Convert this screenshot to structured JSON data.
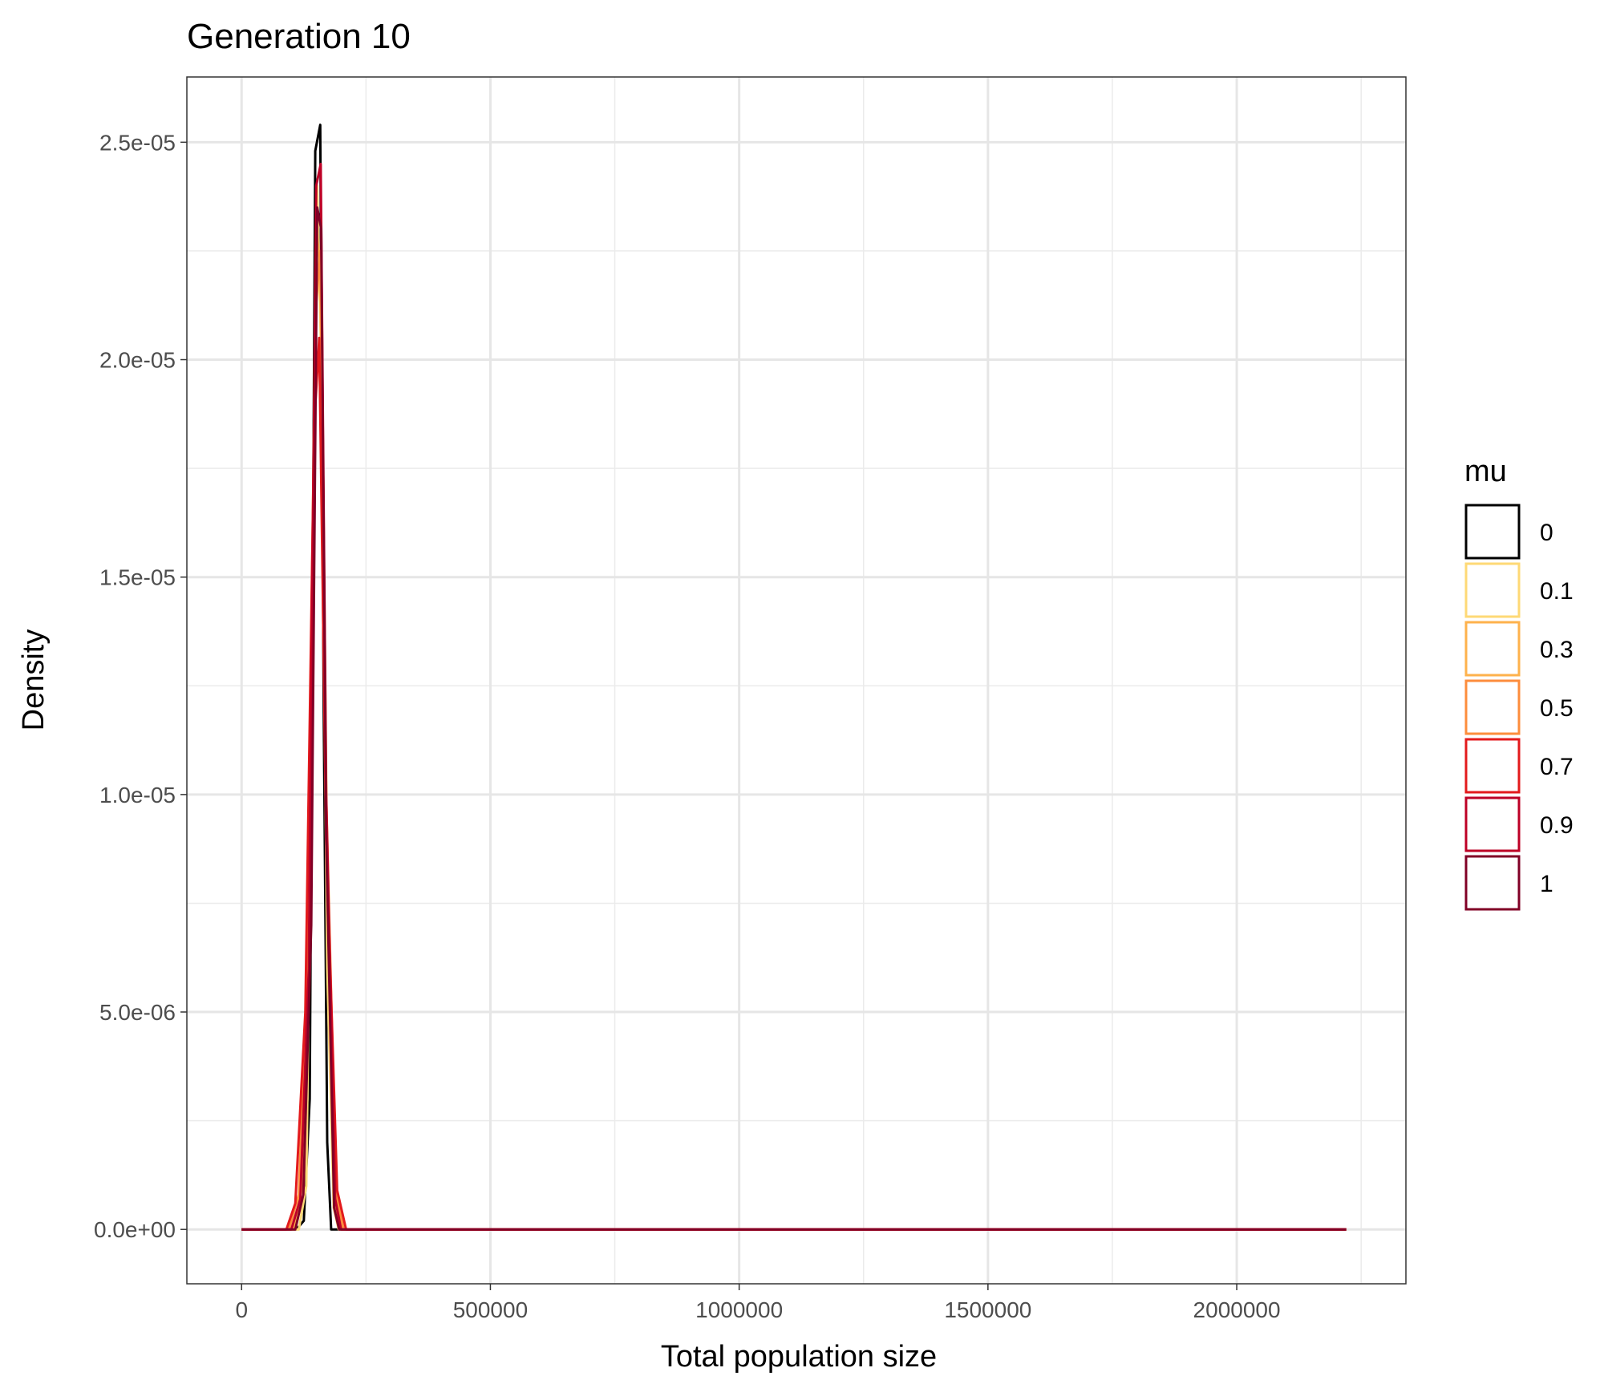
{
  "chart_data": {
    "type": "line",
    "title": "Generation 10",
    "xlabel": "Total population size",
    "ylabel": "Density",
    "xlim": [
      -110000,
      2340000
    ],
    "ylim": [
      -1.25e-06,
      2.65e-05
    ],
    "x_ticks": [
      0,
      500000,
      1000000,
      1500000,
      2000000
    ],
    "x_tick_labels": [
      "0",
      "500000",
      "1000000",
      "1500000",
      "2000000"
    ],
    "x_minor_ticks": [
      250000,
      750000,
      1250000,
      1750000,
      2250000
    ],
    "y_ticks": [
      0,
      5e-06,
      1e-05,
      1.5e-05,
      2e-05,
      2.5e-05
    ],
    "y_tick_labels": [
      "0.0e+00",
      "5.0e-06",
      "1.0e-05",
      "1.5e-05",
      "2.0e-05",
      "2.5e-05"
    ],
    "y_minor_ticks": [
      2.5e-06,
      7.5e-06,
      1.25e-05,
      1.75e-05,
      2.25e-05
    ],
    "grid": true,
    "legend": {
      "title": "mu",
      "position": "right"
    },
    "series": [
      {
        "name": "0",
        "color": "#000000",
        "points": [
          [
            0,
            0
          ],
          [
            110000,
            0
          ],
          [
            125000,
            2e-07
          ],
          [
            137000,
            3e-06
          ],
          [
            148000,
            2.48e-05
          ],
          [
            158000,
            2.54e-05
          ],
          [
            165000,
            1.2e-05
          ],
          [
            172000,
            2e-06
          ],
          [
            180000,
            0
          ],
          [
            2220000,
            0
          ]
        ]
      },
      {
        "name": "0.1",
        "color": "#FED976",
        "points": [
          [
            0,
            0
          ],
          [
            115000,
            0
          ],
          [
            130000,
            1e-06
          ],
          [
            142000,
            1.2e-05
          ],
          [
            152000,
            2.4e-05
          ],
          [
            160000,
            2e-05
          ],
          [
            172000,
            6e-06
          ],
          [
            185000,
            5e-07
          ],
          [
            195000,
            0
          ],
          [
            2220000,
            0
          ]
        ]
      },
      {
        "name": "0.3",
        "color": "#FEB24C",
        "points": [
          [
            0,
            0
          ],
          [
            105000,
            0
          ],
          [
            122000,
            1e-06
          ],
          [
            138000,
            9e-06
          ],
          [
            150000,
            2.3e-05
          ],
          [
            160000,
            2.2e-05
          ],
          [
            172000,
            8e-06
          ],
          [
            188000,
            6e-07
          ],
          [
            200000,
            0
          ],
          [
            2220000,
            0
          ]
        ]
      },
      {
        "name": "0.5",
        "color": "#FD8D3C",
        "points": [
          [
            0,
            0
          ],
          [
            95000,
            0
          ],
          [
            115000,
            8e-07
          ],
          [
            132000,
            6e-06
          ],
          [
            148000,
            2.1e-05
          ],
          [
            158000,
            2.25e-05
          ],
          [
            170000,
            1e-05
          ],
          [
            190000,
            8e-07
          ],
          [
            205000,
            0
          ],
          [
            2220000,
            0
          ]
        ]
      },
      {
        "name": "0.7",
        "color": "#E31A1C",
        "points": [
          [
            0,
            0
          ],
          [
            90000,
            0
          ],
          [
            108000,
            6e-07
          ],
          [
            128000,
            5e-06
          ],
          [
            146000,
            1.85e-05
          ],
          [
            156000,
            2.05e-05
          ],
          [
            170000,
            9e-06
          ],
          [
            192000,
            9e-07
          ],
          [
            210000,
            0
          ],
          [
            2220000,
            0
          ]
        ]
      },
      {
        "name": "0.9",
        "color": "#BD0026",
        "points": [
          [
            0,
            0
          ],
          [
            100000,
            0
          ],
          [
            118000,
            7e-07
          ],
          [
            135000,
            6e-06
          ],
          [
            150000,
            2.4e-05
          ],
          [
            159000,
            2.45e-05
          ],
          [
            170000,
            1e-05
          ],
          [
            188000,
            7e-07
          ],
          [
            200000,
            0
          ],
          [
            2220000,
            0
          ]
        ]
      },
      {
        "name": "1",
        "color": "#800026",
        "points": [
          [
            0,
            0
          ],
          [
            108000,
            0
          ],
          [
            124000,
            8e-07
          ],
          [
            140000,
            7e-06
          ],
          [
            152000,
            2.35e-05
          ],
          [
            160000,
            2.3e-05
          ],
          [
            170000,
            9e-06
          ],
          [
            186000,
            5e-07
          ],
          [
            196000,
            0
          ],
          [
            2220000,
            0
          ]
        ]
      }
    ]
  }
}
